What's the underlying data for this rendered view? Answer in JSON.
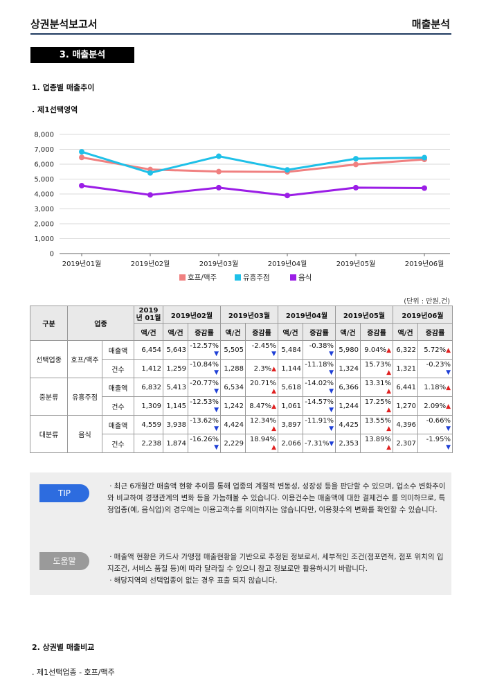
{
  "header": {
    "left_title": "상권분석보고서",
    "right_title": "매출분석"
  },
  "section": {
    "title": "3. 매출분석"
  },
  "subsection1": "1. 업종별 매출추이",
  "chart_subtitle": ". 제1선택영역",
  "chart_data": {
    "type": "line",
    "categories": [
      "2019년01월",
      "2019년02월",
      "2019년03월",
      "2019년04월",
      "2019년05월",
      "2019년06월"
    ],
    "ylim": [
      0,
      8000
    ],
    "yticks": [
      "0",
      "1,000",
      "2,000",
      "3,000",
      "4,000",
      "5,000",
      "6,000",
      "7,000",
      "8,000"
    ],
    "grid": true,
    "legend": "bottom",
    "series": [
      {
        "name": "호프/맥주",
        "color": "#f08080",
        "values": [
          6454,
          5643,
          5505,
          5484,
          5980,
          6322
        ]
      },
      {
        "name": "유흥주점",
        "color": "#1ec0e8",
        "values": [
          6832,
          5413,
          6534,
          5618,
          6366,
          6441
        ]
      },
      {
        "name": "음식",
        "color": "#9b1ee6",
        "values": [
          4559,
          3938,
          4424,
          3897,
          4425,
          4396
        ]
      }
    ]
  },
  "table": {
    "unit": "(단위 : 만원,건)",
    "h_group": "구분",
    "h_biz": "업종",
    "months": [
      "2019년 01월",
      "2019년02월",
      "2019년03월",
      "2019년04월",
      "2019년05월",
      "2019년06월"
    ],
    "h_amt": "액/건",
    "h_chg": "증감률",
    "groups": [
      {
        "group": "선택업종",
        "biz": "호프/맥주",
        "rows": [
          {
            "metric": "매출액",
            "m1": "6,454",
            "cells": [
              {
                "v": "5,643",
                "c": "-12.57%",
                "d": "down",
                "w": true
              },
              {
                "v": "5,505",
                "c": "-2.45%",
                "d": "down",
                "w": true
              },
              {
                "v": "5,484",
                "c": "-0.38%",
                "d": "down",
                "w": true
              },
              {
                "v": "5,980",
                "c": "9.04%",
                "d": "up",
                "w": false
              },
              {
                "v": "6,322",
                "c": "5.72%",
                "d": "up",
                "w": false
              }
            ]
          },
          {
            "metric": "건수",
            "m1": "1,412",
            "cells": [
              {
                "v": "1,259",
                "c": "-10.84%",
                "d": "down",
                "w": true
              },
              {
                "v": "1,288",
                "c": "2.3%",
                "d": "up",
                "w": false
              },
              {
                "v": "1,144",
                "c": "-11.18%",
                "d": "down",
                "w": true
              },
              {
                "v": "1,324",
                "c": "15.73%",
                "d": "up",
                "w": true
              },
              {
                "v": "1,321",
                "c": "-0.23%",
                "d": "down",
                "w": true
              }
            ]
          }
        ]
      },
      {
        "group": "중분류",
        "biz": "유흥주점",
        "rows": [
          {
            "metric": "매출액",
            "m1": "6,832",
            "cells": [
              {
                "v": "5,413",
                "c": "-20.77%",
                "d": "down",
                "w": true
              },
              {
                "v": "6,534",
                "c": "20.71%",
                "d": "up",
                "w": true
              },
              {
                "v": "5,618",
                "c": "-14.02%",
                "d": "down",
                "w": true
              },
              {
                "v": "6,366",
                "c": "13.31%",
                "d": "up",
                "w": true
              },
              {
                "v": "6,441",
                "c": "1.18%",
                "d": "up",
                "w": false
              }
            ]
          },
          {
            "metric": "건수",
            "m1": "1,309",
            "cells": [
              {
                "v": "1,145",
                "c": "-12.53%",
                "d": "down",
                "w": true
              },
              {
                "v": "1,242",
                "c": "8.47%",
                "d": "up",
                "w": false
              },
              {
                "v": "1,061",
                "c": "-14.57%",
                "d": "down",
                "w": true
              },
              {
                "v": "1,244",
                "c": "17.25%",
                "d": "up",
                "w": true
              },
              {
                "v": "1,270",
                "c": "2.09%",
                "d": "up",
                "w": false
              }
            ]
          }
        ]
      },
      {
        "group": "대분류",
        "biz": "음식",
        "rows": [
          {
            "metric": "매출액",
            "m1": "4,559",
            "cells": [
              {
                "v": "3,938",
                "c": "-13.62%",
                "d": "down",
                "w": true
              },
              {
                "v": "4,424",
                "c": "12.34%",
                "d": "up",
                "w": true
              },
              {
                "v": "3,897",
                "c": "-11.91%",
                "d": "down",
                "w": true
              },
              {
                "v": "4,425",
                "c": "13.55%",
                "d": "up",
                "w": true
              },
              {
                "v": "4,396",
                "c": "-0.66%",
                "d": "down",
                "w": true
              }
            ]
          },
          {
            "metric": "건수",
            "m1": "2,238",
            "cells": [
              {
                "v": "1,874",
                "c": "-16.26%",
                "d": "down",
                "w": true
              },
              {
                "v": "2,229",
                "c": "18.94%",
                "d": "up",
                "w": true
              },
              {
                "v": "2,066",
                "c": "-7.31%",
                "d": "down",
                "w": false
              },
              {
                "v": "2,353",
                "c": "13.89%",
                "d": "up",
                "w": true
              },
              {
                "v": "2,307",
                "c": "-1.95%",
                "d": "down",
                "w": true
              }
            ]
          }
        ]
      }
    ]
  },
  "info": {
    "tip_label": "TIP",
    "tip_text": "ㆍ최근 6개월간 매출액 현황 추이를 통해 업종의 계절적 변동성, 성장성 등을 판단할 수 있으며, 업소수 변화추이와 비교하여 경쟁관계의 변화 등을 가늠해볼 수 있습니다. 이용건수는 매출액에 대한 결제건수 를 의미하므로, 특정업종(예, 음식업)의 경우에는 이용고객수를 의미하지는 않습니다만, 이용횟수의 변화를 확인할 수 있습니다.",
    "help_label": "도움말",
    "help_lines": [
      "ㆍ매출액 현황은 카드사 가맹점 매출현황을 기반으로 추정된 정보로서, 세부적인 조건(점포면적, 점포 위치의 입지조건, 서비스 품질 등)에 따라 달라질 수 있으니 참고 정보로만 활용하시기 바랍니다.",
      "ㆍ해당지역의 선택업종이 없는 경우 표출 되지 않습니다."
    ]
  },
  "subsection2": "2. 상권별 매출비교",
  "subsection2_sub": ". 제1선택업종 - 호프/맥주"
}
